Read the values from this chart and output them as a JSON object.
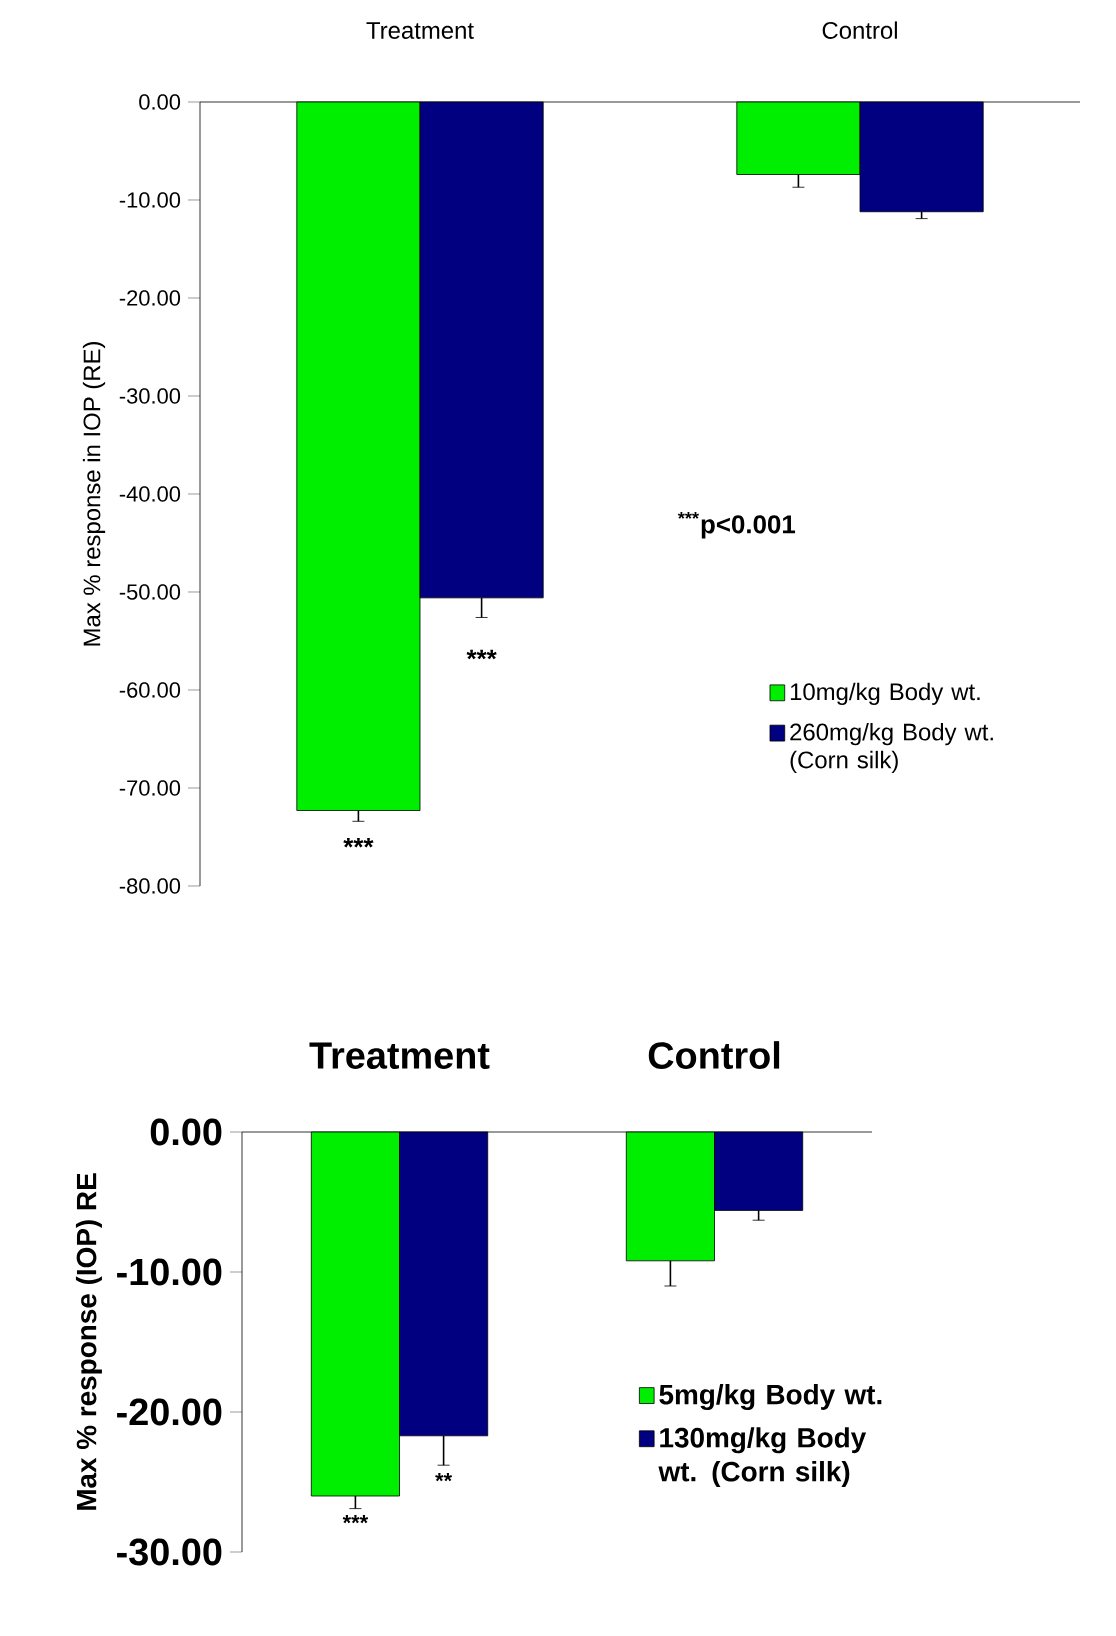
{
  "chart_data": [
    {
      "type": "bar",
      "ylabel": "Max % response in IOP (RE)",
      "categories": [
        "Treatment",
        "Control"
      ],
      "ylim": [
        -80,
        0
      ],
      "yticks": [
        {
          "value": 0,
          "label": "0.00"
        },
        {
          "value": -10,
          "label": "-10.00"
        },
        {
          "value": -20,
          "label": "-20.00"
        },
        {
          "value": -30,
          "label": "-30.00"
        },
        {
          "value": -40,
          "label": "-40.00"
        },
        {
          "value": -50,
          "label": "-50.00"
        },
        {
          "value": -60,
          "label": "-60.00"
        },
        {
          "value": -70,
          "label": "-70.00"
        },
        {
          "value": -80,
          "label": "-80.00"
        }
      ],
      "legend": "bottom right",
      "series": [
        {
          "name": "10mg/kg Body wt.",
          "color": "#00ee00",
          "values": [
            -72.3,
            -7.4
          ],
          "errors": [
            [
              -73.4,
              -72.3
            ],
            [
              -8.7,
              -7.4
            ]
          ]
        },
        {
          "name": "260mg/kg Body wt. (Corn silk)",
          "color": "#000080",
          "values": [
            -50.6,
            -11.2
          ],
          "errors": [
            [
              -52.6,
              -50.6
            ],
            [
              -11.9,
              -11.2
            ]
          ]
        }
      ],
      "annotations": [
        "***",
        "***",
        "$^{***}$p<0.001"
      ]
    },
    {
      "type": "bar",
      "ylabel": "Max % response (IOP) RE",
      "categories": [
        "Treatment",
        "Control"
      ],
      "ylim": [
        -30,
        0
      ],
      "yticks": [
        {
          "value": 0,
          "label": "0.00"
        },
        {
          "value": -10,
          "label": "-10.00"
        },
        {
          "value": -20,
          "label": "-20.00"
        },
        {
          "value": -30,
          "label": "-30.00"
        }
      ],
      "legend": "bottom right",
      "series": [
        {
          "name": "5mg/kg Body wt.",
          "color": "#00ee00",
          "values": [
            -26.0,
            -9.2
          ],
          "errors": [
            [
              -26.9,
              -26.0
            ],
            [
              -11.0,
              -9.2
            ]
          ]
        },
        {
          "name": "130mg/kg Body wt. (Corn silk)",
          "color": "#000080",
          "values": [
            -21.7,
            -5.6
          ],
          "errors": [
            [
              -23.8,
              -21.7
            ],
            [
              -6.3,
              -5.6
            ]
          ]
        }
      ],
      "annotations": [
        "***",
        "**"
      ]
    }
  ]
}
